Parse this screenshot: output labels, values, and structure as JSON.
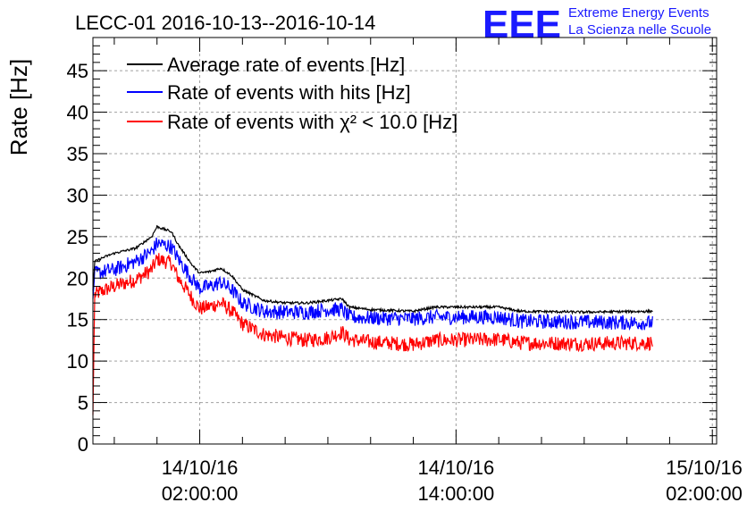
{
  "header": {
    "title": "LECC-01 2016-10-13--2016-10-14",
    "logo_letters": "EEE",
    "logo_line1": "Extreme Energy Events",
    "logo_line2": "La Scienza nelle Scuole"
  },
  "colors": {
    "logo": "#1a1aff",
    "average": "#000000",
    "hits": "#0000ff",
    "chi2": "#ff0000",
    "grid": "#a0a0a0"
  },
  "chart_data": {
    "type": "line",
    "title": "LECC-01 2016-10-13--2016-10-14",
    "xlabel": "",
    "ylabel": "Rate [Hz]",
    "ylim": [
      0,
      49
    ],
    "xlim_hours_from_first_tick": [
      -5.0,
      24.2
    ],
    "grid": true,
    "legend_position": "top-left",
    "y_ticks": [
      "0",
      "5",
      "10",
      "15",
      "20",
      "25",
      "30",
      "35",
      "40",
      "45"
    ],
    "x_ticks": [
      {
        "date": "14/10/16",
        "time": "02:00:00"
      },
      {
        "date": "14/10/16",
        "time": "14:00:00"
      },
      {
        "date": "15/10/16",
        "time": "02:00:00"
      }
    ],
    "series": [
      {
        "name": "Average rate of events [Hz]",
        "color": "#000000",
        "points": [
          [
            "13/10/16 21:00",
            18.5
          ],
          [
            "13/10/16 21:05",
            22.0
          ],
          [
            "13/10/16 21:30",
            22.5
          ],
          [
            "13/10/16 22:00",
            23.0
          ],
          [
            "13/10/16 23:00",
            23.6
          ],
          [
            "13/10/16 23:45",
            25.0
          ],
          [
            "14/10/16 00:00",
            26.2
          ],
          [
            "14/10/16 00:40",
            25.6
          ],
          [
            "14/10/16 01:00",
            24.0
          ],
          [
            "14/10/16 01:40",
            21.5
          ],
          [
            "14/10/16 02:00",
            20.6
          ],
          [
            "14/10/16 02:30",
            20.8
          ],
          [
            "14/10/16 03:00",
            21.2
          ],
          [
            "14/10/16 03:30",
            20.3
          ],
          [
            "14/10/16 04:00",
            18.6
          ],
          [
            "14/10/16 05:00",
            17.3
          ],
          [
            "14/10/16 06:00",
            17.0
          ],
          [
            "14/10/16 07:00",
            17.0
          ],
          [
            "14/10/16 08:00",
            17.3
          ],
          [
            "14/10/16 08:40",
            17.5
          ],
          [
            "14/10/16 09:00",
            16.5
          ],
          [
            "14/10/16 10:00",
            16.2
          ],
          [
            "14/10/16 12:00",
            16.0
          ],
          [
            "14/10/16 13:00",
            16.5
          ],
          [
            "14/10/16 16:00",
            16.5
          ],
          [
            "14/10/16 17:00",
            16.0
          ],
          [
            "14/10/16 20:00",
            15.9
          ],
          [
            "14/10/16 23:12",
            16.0
          ]
        ]
      },
      {
        "name": "Rate of events with hits [Hz]",
        "color": "#0000ff",
        "points": [
          [
            "13/10/16 21:00",
            17.5
          ],
          [
            "13/10/16 21:05",
            20.5
          ],
          [
            "13/10/16 21:30",
            20.8
          ],
          [
            "13/10/16 22:00",
            21.0
          ],
          [
            "13/10/16 23:00",
            22.0
          ],
          [
            "13/10/16 23:45",
            23.2
          ],
          [
            "14/10/16 00:00",
            24.2
          ],
          [
            "14/10/16 00:40",
            23.8
          ],
          [
            "14/10/16 01:00",
            22.3
          ],
          [
            "14/10/16 01:40",
            19.8
          ],
          [
            "14/10/16 02:00",
            18.8
          ],
          [
            "14/10/16 02:30",
            19.0
          ],
          [
            "14/10/16 03:00",
            19.5
          ],
          [
            "14/10/16 03:30",
            18.6
          ],
          [
            "14/10/16 04:00",
            17.0
          ],
          [
            "14/10/16 05:00",
            16.0
          ],
          [
            "14/10/16 06:00",
            15.9
          ],
          [
            "14/10/16 07:00",
            15.9
          ],
          [
            "14/10/16 08:00",
            16.2
          ],
          [
            "14/10/16 08:40",
            16.2
          ],
          [
            "14/10/16 09:00",
            15.3
          ],
          [
            "14/10/16 10:00",
            15.2
          ],
          [
            "14/10/16 12:00",
            15.1
          ],
          [
            "14/10/16 13:00",
            15.3
          ],
          [
            "14/10/16 16:00",
            15.3
          ],
          [
            "14/10/16 17:00",
            14.8
          ],
          [
            "14/10/16 20:00",
            14.7
          ],
          [
            "14/10/16 23:12",
            14.6
          ]
        ]
      },
      {
        "name": "Rate of events with χ² < 10.0 [Hz]",
        "color": "#ff0000",
        "points": [
          [
            "13/10/16 21:00",
            3.5
          ],
          [
            "13/10/16 21:05",
            18.0
          ],
          [
            "13/10/16 21:30",
            18.5
          ],
          [
            "13/10/16 22:00",
            19.0
          ],
          [
            "13/10/16 23:00",
            19.8
          ],
          [
            "13/10/16 23:45",
            21.0
          ],
          [
            "14/10/16 00:00",
            22.3
          ],
          [
            "14/10/16 00:40",
            21.8
          ],
          [
            "14/10/16 01:00",
            20.0
          ],
          [
            "14/10/16 01:40",
            17.5
          ],
          [
            "14/10/16 02:00",
            16.3
          ],
          [
            "14/10/16 02:30",
            16.6
          ],
          [
            "14/10/16 03:00",
            17.0
          ],
          [
            "14/10/16 03:30",
            16.0
          ],
          [
            "14/10/16 04:00",
            14.5
          ],
          [
            "14/10/16 05:00",
            13.2
          ],
          [
            "14/10/16 06:00",
            12.8
          ],
          [
            "14/10/16 07:00",
            12.5
          ],
          [
            "14/10/16 08:00",
            12.8
          ],
          [
            "14/10/16 08:40",
            13.5
          ],
          [
            "14/10/16 09:00",
            12.6
          ],
          [
            "14/10/16 10:00",
            12.3
          ],
          [
            "14/10/16 12:00",
            12.0
          ],
          [
            "14/10/16 13:00",
            12.5
          ],
          [
            "14/10/16 16:00",
            12.6
          ],
          [
            "14/10/16 17:00",
            12.2
          ],
          [
            "14/10/16 20:00",
            12.1
          ],
          [
            "14/10/16 23:12",
            12.2
          ]
        ]
      }
    ]
  }
}
